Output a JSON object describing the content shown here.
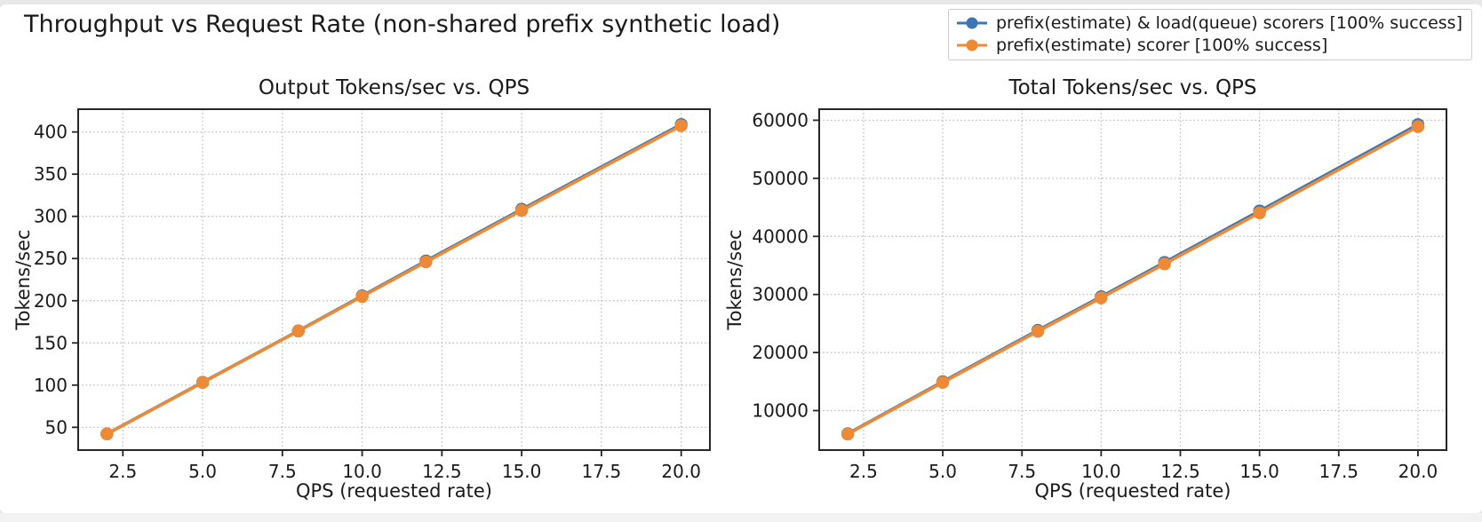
{
  "figure": {
    "suptitle": "Throughput vs Request Rate (non-shared prefix synthetic load)"
  },
  "legend": {
    "position": "top-right",
    "items": [
      {
        "label": "prefix(estimate) & load(queue) scorers [100% success]",
        "color": "#3b76b5"
      },
      {
        "label": "prefix(estimate) scorer [100% success]",
        "color": "#ee8a35"
      }
    ]
  },
  "chart_data": [
    {
      "type": "line",
      "title": "Output Tokens/sec vs. QPS",
      "xlabel": "QPS (requested rate)",
      "ylabel": "Tokens/sec",
      "grid": true,
      "x": [
        2,
        5,
        8,
        10,
        12,
        15,
        20
      ],
      "series": [
        {
          "name": "prefix(estimate) & load(queue) scorers [100% success]",
          "color": "#3b76b5",
          "values": [
            42.3,
            103.4,
            164.3,
            205.8,
            247.2,
            308.4,
            408.9
          ]
        },
        {
          "name": "prefix(estimate) scorer [100% success]",
          "color": "#ee8a35",
          "values": [
            42,
            103,
            164,
            205,
            246,
            307,
            407.5
          ]
        }
      ],
      "xlim": [
        1.1,
        20.9
      ],
      "ylim": [
        23,
        427
      ],
      "xticks": [
        2.5,
        5.0,
        7.5,
        10.0,
        12.5,
        15.0,
        17.5,
        20.0
      ],
      "xtick_labels": [
        "2.5",
        "5.0",
        "7.5",
        "10.0",
        "12.5",
        "15.0",
        "17.5",
        "20.0"
      ],
      "yticks": [
        50,
        100,
        150,
        200,
        250,
        300,
        350,
        400
      ],
      "ytick_labels": [
        "50",
        "100",
        "150",
        "200",
        "250",
        "300",
        "350",
        "400"
      ]
    },
    {
      "type": "line",
      "title": "Total Tokens/sec vs. QPS",
      "xlabel": "QPS (requested rate)",
      "ylabel": "Tokens/sec",
      "grid": true,
      "x": [
        2,
        5,
        8,
        10,
        12,
        15,
        20
      ],
      "series": [
        {
          "name": "prefix(estimate) & load(queue) scorers [100% success]",
          "color": "#3b76b5",
          "values": [
            6030,
            14980,
            23830,
            29620,
            35520,
            44380,
            59250
          ]
        },
        {
          "name": "prefix(estimate) scorer [100% success]",
          "color": "#ee8a35",
          "values": [
            5950,
            14850,
            23650,
            29400,
            35250,
            44050,
            58900
          ]
        }
      ],
      "xlim": [
        1.1,
        20.9
      ],
      "ylim": [
        3200,
        61900
      ],
      "xticks": [
        2.5,
        5.0,
        7.5,
        10.0,
        12.5,
        15.0,
        17.5,
        20.0
      ],
      "xtick_labels": [
        "2.5",
        "5.0",
        "7.5",
        "10.0",
        "12.5",
        "15.0",
        "17.5",
        "20.0"
      ],
      "yticks": [
        10000,
        20000,
        30000,
        40000,
        50000,
        60000
      ],
      "ytick_labels": [
        "10000",
        "20000",
        "30000",
        "40000",
        "50000",
        "60000"
      ]
    }
  ]
}
